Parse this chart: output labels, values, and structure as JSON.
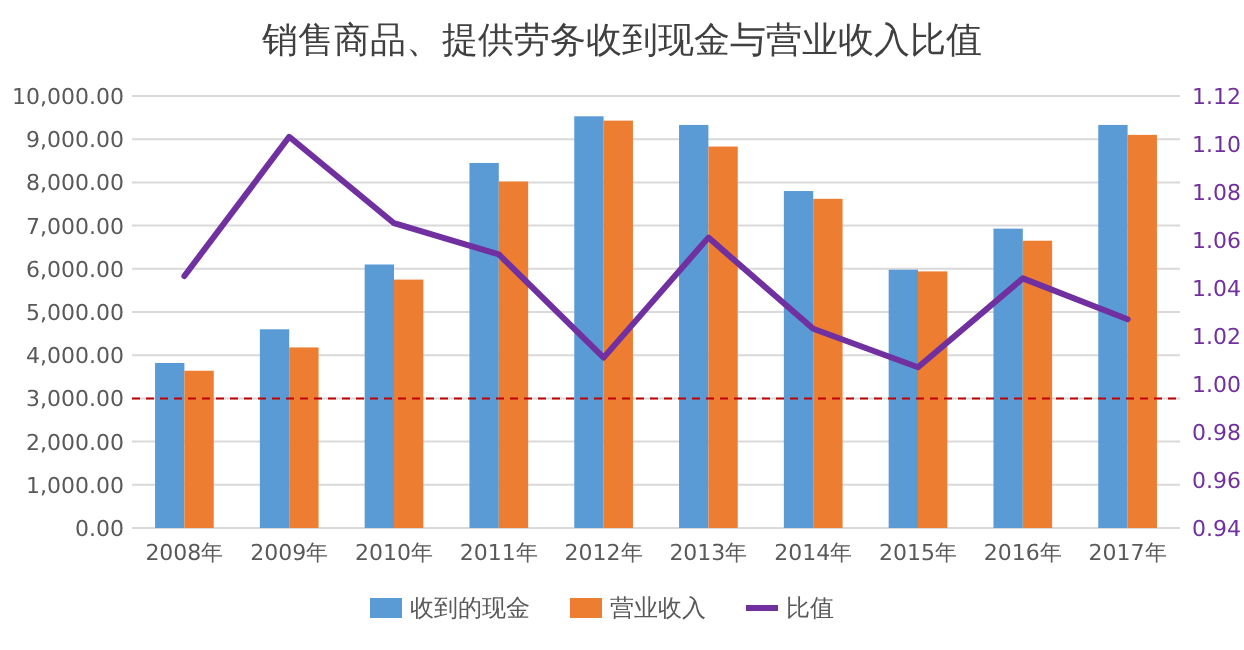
{
  "chart_data": {
    "type": "bar",
    "title": "销售商品、提供劳务收到现金与营业收入比值",
    "categories": [
      "2008年",
      "2009年",
      "2010年",
      "2011年",
      "2012年",
      "2013年",
      "2014年",
      "2015年",
      "2016年",
      "2017年"
    ],
    "series": [
      {
        "name": "收到的现金",
        "color": "#5b9bd5",
        "values": [
          3820,
          4600,
          6100,
          8450,
          9530,
          9330,
          7800,
          5980,
          6930,
          9330
        ]
      },
      {
        "name": "营业收入",
        "color": "#ed7d31",
        "values": [
          3640,
          4180,
          5750,
          8020,
          9430,
          8830,
          7620,
          5940,
          6650,
          9100
        ]
      },
      {
        "name": "比值",
        "type": "line",
        "axis": "y2",
        "color": "#7030a0",
        "values": [
          1.045,
          1.103,
          1.067,
          1.054,
          1.011,
          1.061,
          1.023,
          1.007,
          1.044,
          1.027
        ]
      }
    ],
    "ylim": [
      0,
      10000
    ],
    "yticks": [
      {
        "value": 0,
        "label": "0.00"
      },
      {
        "value": 1000,
        "label": "1,000.00"
      },
      {
        "value": 2000,
        "label": "2,000.00"
      },
      {
        "value": 3000,
        "label": "3,000.00"
      },
      {
        "value": 4000,
        "label": "4,000.00"
      },
      {
        "value": 5000,
        "label": "5,000.00"
      },
      {
        "value": 6000,
        "label": "6,000.00"
      },
      {
        "value": 7000,
        "label": "7,000.00"
      },
      {
        "value": 8000,
        "label": "8,000.00"
      },
      {
        "value": 9000,
        "label": "9,000.00"
      },
      {
        "value": 10000,
        "label": "10,000.00"
      }
    ],
    "y2lim": [
      0.94,
      1.12
    ],
    "y2ticks": [
      0.94,
      0.96,
      0.98,
      {
        "value": 1.0,
        "label": "1.00"
      },
      1.02,
      1.04,
      1.06,
      1.08,
      {
        "value": 1.1,
        "label": "1.10"
      },
      1.12
    ],
    "ref_lines": [
      {
        "axis": "y",
        "value": 3000,
        "color": "#c00000",
        "line_style": "dashed"
      }
    ],
    "grid": "y",
    "legend": "bottom",
    "marker": "none",
    "line_style": "solid"
  }
}
